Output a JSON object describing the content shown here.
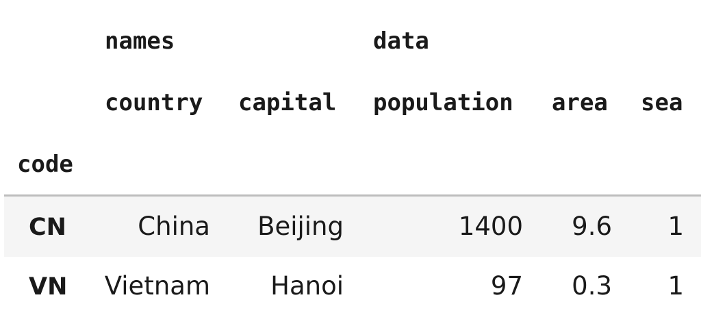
{
  "table": {
    "column_groups": [
      "names",
      "data"
    ],
    "columns": [
      "country",
      "capital",
      "population",
      "area",
      "sea"
    ],
    "index_name": "code",
    "rows": [
      {
        "code": "CN",
        "country": "China",
        "capital": "Beijing",
        "population": "1400",
        "area": "9.6",
        "sea": "1"
      },
      {
        "code": "VN",
        "country": "Vietnam",
        "capital": "Hanoi",
        "population": "97",
        "area": "0.3",
        "sea": "1"
      }
    ]
  },
  "colors": {
    "text": "#1a1a1a",
    "row_stripe": "#f5f5f5",
    "divider": "#bdbdbd",
    "background": "#ffffff"
  }
}
